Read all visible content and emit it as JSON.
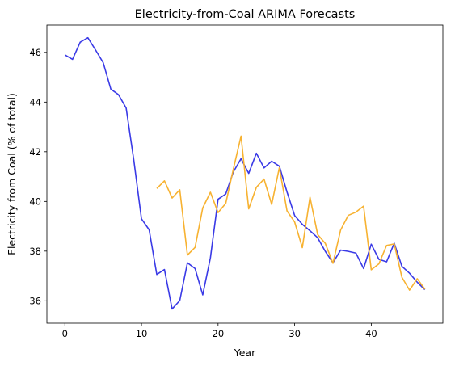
{
  "chart_data": {
    "type": "line",
    "title": "Electricity-from-Coal ARIMA Forecasts",
    "xlabel": "Year",
    "ylabel": "Electricity from Coal (% of total)",
    "xlim": [
      -2.35,
      49.35
    ],
    "ylim": [
      35.1,
      47.1
    ],
    "xticks": [
      0,
      10,
      20,
      30,
      40
    ],
    "yticks": [
      36,
      38,
      40,
      42,
      44,
      46
    ],
    "grid": false,
    "series": [
      {
        "color": "#3a3ae6",
        "x": [
          0,
          1,
          2,
          3,
          4,
          5,
          6,
          7,
          8,
          9,
          10,
          11,
          12,
          13,
          14,
          15,
          16,
          17,
          18,
          19,
          20,
          21,
          22,
          23,
          24,
          25,
          26,
          27,
          28,
          29,
          30,
          31,
          32,
          33,
          34,
          35,
          36,
          37,
          38,
          39,
          40,
          41,
          42,
          43,
          44,
          45,
          46,
          47
        ],
        "y": [
          45.9,
          45.72,
          46.41,
          46.59,
          46.1,
          45.59,
          44.52,
          44.3,
          43.76,
          41.66,
          39.3,
          38.86,
          37.06,
          37.26,
          35.67,
          36.01,
          37.53,
          37.3,
          36.24,
          37.73,
          40.09,
          40.3,
          41.19,
          41.72,
          41.13,
          41.94,
          41.35,
          41.62,
          41.42,
          40.38,
          39.43,
          39.08,
          38.82,
          38.54,
          37.99,
          37.53,
          38.04,
          37.99,
          37.92,
          37.3,
          38.28,
          37.67,
          37.57,
          38.32,
          37.39,
          37.11,
          36.75,
          36.45
        ]
      },
      {
        "color": "#f7b231",
        "x": [
          12,
          13,
          14,
          15,
          16,
          17,
          18,
          19,
          20,
          21,
          22,
          23,
          24,
          25,
          26,
          27,
          28,
          29,
          30,
          31,
          32,
          33,
          34,
          35,
          36,
          37,
          38,
          39,
          40,
          41,
          42,
          43,
          44,
          45,
          46,
          47
        ],
        "y": [
          40.52,
          40.83,
          40.14,
          40.47,
          37.84,
          38.15,
          39.74,
          40.37,
          39.55,
          39.92,
          41.31,
          42.63,
          39.7,
          40.57,
          40.9,
          39.88,
          41.36,
          39.62,
          39.17,
          38.14,
          40.17,
          38.67,
          38.31,
          37.51,
          38.85,
          39.44,
          39.57,
          39.81,
          37.25,
          37.49,
          38.23,
          38.29,
          36.95,
          36.43,
          36.89,
          36.47
        ]
      }
    ]
  }
}
